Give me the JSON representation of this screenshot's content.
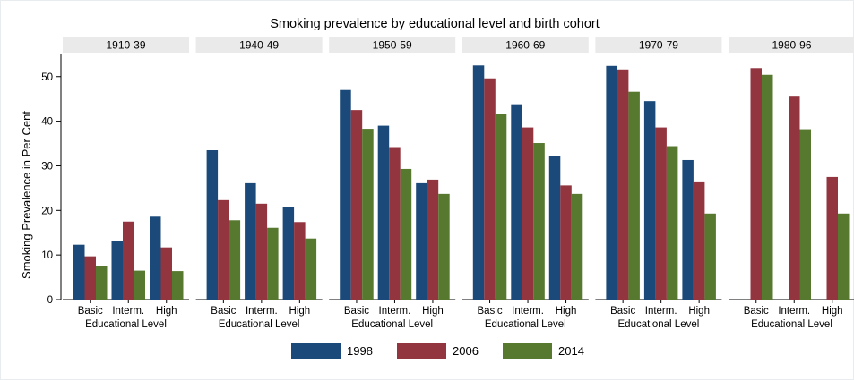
{
  "chart_data": {
    "type": "bar",
    "title": "Smoking prevalence by educational level and birth cohort",
    "ylabel": "Smoking Prevalence in Per Cent",
    "xlabel": "Educational Level",
    "ylim": [
      0,
      55
    ],
    "yticks": [
      0,
      10,
      20,
      30,
      40,
      50
    ],
    "categories": [
      "Basic",
      "Interm.",
      "High"
    ],
    "legend_position": "bottom",
    "series": [
      {
        "name": "1998",
        "color": "#1b4a7a"
      },
      {
        "name": "2006",
        "color": "#93353f"
      },
      {
        "name": "2014",
        "color": "#56782f"
      }
    ],
    "panels": [
      {
        "title": "1910-39",
        "values": [
          [
            12.3,
            9.7,
            7.5
          ],
          [
            13.1,
            17.5,
            6.5
          ],
          [
            18.6,
            11.7,
            6.4
          ]
        ]
      },
      {
        "title": "1940-49",
        "values": [
          [
            33.5,
            22.3,
            17.8
          ],
          [
            26.1,
            21.5,
            16.1
          ],
          [
            20.8,
            17.4,
            13.7
          ]
        ]
      },
      {
        "title": "1950-59",
        "values": [
          [
            47.0,
            42.5,
            38.3
          ],
          [
            39.0,
            34.2,
            29.3
          ],
          [
            26.1,
            26.9,
            23.7
          ]
        ]
      },
      {
        "title": "1960-69",
        "values": [
          [
            52.5,
            49.6,
            41.7
          ],
          [
            43.8,
            38.6,
            35.1
          ],
          [
            32.1,
            25.6,
            23.7
          ]
        ]
      },
      {
        "title": "1970-79",
        "values": [
          [
            52.4,
            51.6,
            46.6
          ],
          [
            44.5,
            38.6,
            34.4
          ],
          [
            31.3,
            26.5,
            19.3
          ]
        ]
      },
      {
        "title": "1980-96",
        "values": [
          [
            null,
            51.9,
            50.4
          ],
          [
            null,
            45.7,
            38.2
          ],
          [
            null,
            27.5,
            19.3
          ]
        ]
      }
    ]
  }
}
